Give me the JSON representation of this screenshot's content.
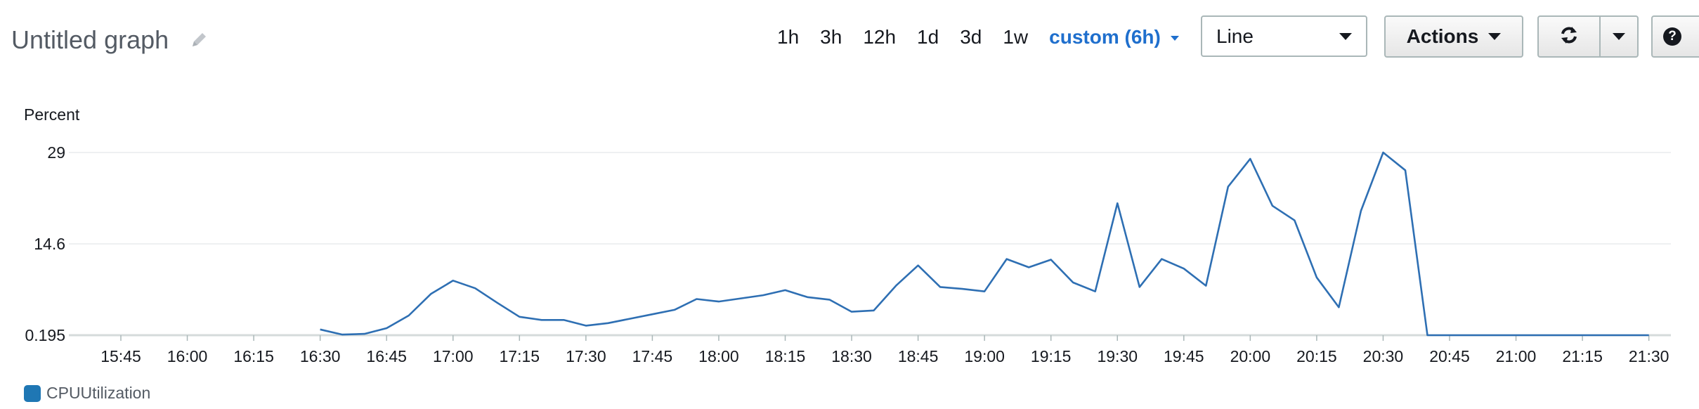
{
  "header": {
    "title": "Untitled graph",
    "time_ranges": [
      "1h",
      "3h",
      "12h",
      "1d",
      "3d",
      "1w"
    ],
    "custom_range": "custom (6h)",
    "view_select": "Line",
    "actions_label": "Actions"
  },
  "colors": {
    "series": "#2e6fb3",
    "accent": "#1f6fcd",
    "grid": "#e9ebed"
  },
  "chart_data": {
    "type": "line",
    "ylabel": "Percent",
    "y_ticks": [
      0.195,
      14.6,
      29
    ],
    "y_tick_labels": [
      "0.195",
      "14.6",
      "29"
    ],
    "ylim": [
      0.195,
      29
    ],
    "x_ticks": [
      "15:45",
      "16:00",
      "16:15",
      "16:30",
      "16:45",
      "17:00",
      "17:15",
      "17:30",
      "17:45",
      "18:00",
      "18:15",
      "18:30",
      "18:45",
      "19:00",
      "19:15",
      "19:30",
      "19:45",
      "20:00",
      "20:15",
      "20:30",
      "20:45",
      "21:00",
      "21:15",
      "21:30"
    ],
    "series": [
      {
        "name": "CPUUtilization",
        "points": [
          [
            "16:30",
            1.1
          ],
          [
            "16:35",
            0.3
          ],
          [
            "16:40",
            0.4
          ],
          [
            "16:45",
            1.3
          ],
          [
            "16:50",
            3.3
          ],
          [
            "16:55",
            6.7
          ],
          [
            "17:00",
            8.8
          ],
          [
            "17:05",
            7.6
          ],
          [
            "17:10",
            5.3
          ],
          [
            "17:15",
            3.1
          ],
          [
            "17:20",
            2.6
          ],
          [
            "17:25",
            2.6
          ],
          [
            "17:30",
            1.7
          ],
          [
            "17:35",
            2.1
          ],
          [
            "17:40",
            2.8
          ],
          [
            "17:45",
            3.5
          ],
          [
            "17:50",
            4.2
          ],
          [
            "17:55",
            5.9
          ],
          [
            "18:00",
            5.5
          ],
          [
            "18:05",
            6.0
          ],
          [
            "18:10",
            6.5
          ],
          [
            "18:15",
            7.3
          ],
          [
            "18:20",
            6.2
          ],
          [
            "18:25",
            5.8
          ],
          [
            "18:30",
            3.9
          ],
          [
            "18:35",
            4.1
          ],
          [
            "18:40",
            8.0
          ],
          [
            "18:45",
            11.2
          ],
          [
            "18:50",
            7.8
          ],
          [
            "18:55",
            7.5
          ],
          [
            "19:00",
            7.1
          ],
          [
            "19:05",
            12.2
          ],
          [
            "19:10",
            10.9
          ],
          [
            "19:15",
            12.1
          ],
          [
            "19:20",
            8.5
          ],
          [
            "19:25",
            7.1
          ],
          [
            "19:30",
            21.0
          ],
          [
            "19:35",
            7.8
          ],
          [
            "19:40",
            12.2
          ],
          [
            "19:45",
            10.7
          ],
          [
            "19:50",
            8.0
          ],
          [
            "19:55",
            23.6
          ],
          [
            "20:00",
            28.0
          ],
          [
            "20:05",
            20.6
          ],
          [
            "20:10",
            18.3
          ],
          [
            "20:15",
            9.3
          ],
          [
            "20:20",
            4.6
          ],
          [
            "20:25",
            19.8
          ],
          [
            "20:30",
            29.0
          ],
          [
            "20:35",
            26.2
          ],
          [
            "20:40",
            0.195
          ],
          [
            "20:45",
            0.195
          ],
          [
            "20:50",
            0.195
          ],
          [
            "20:55",
            0.195
          ],
          [
            "21:00",
            0.195
          ],
          [
            "21:05",
            0.195
          ],
          [
            "21:10",
            0.195
          ],
          [
            "21:15",
            0.195
          ],
          [
            "21:20",
            0.195
          ],
          [
            "21:25",
            0.195
          ],
          [
            "21:30",
            0.195
          ]
        ]
      }
    ]
  }
}
